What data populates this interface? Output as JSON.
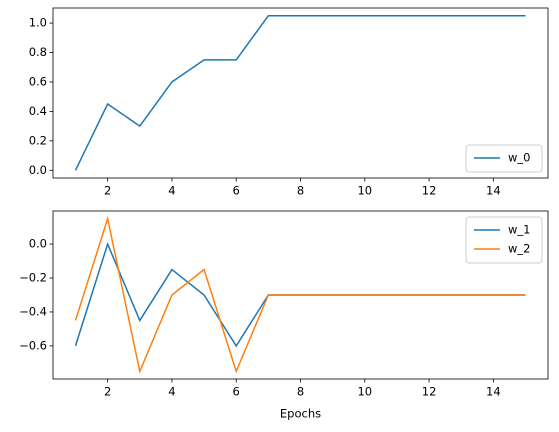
{
  "chart_data": [
    {
      "type": "line",
      "x": [
        1,
        2,
        3,
        4,
        5,
        6,
        7,
        8,
        9,
        10,
        11,
        12,
        13,
        14,
        15
      ],
      "series": [
        {
          "name": "w_0",
          "color": "#1f77b4",
          "values": [
            0,
            0.45,
            0.3,
            0.6,
            0.75,
            0.75,
            1.05,
            1.05,
            1.05,
            1.05,
            1.05,
            1.05,
            1.05,
            1.05,
            1.05
          ]
        }
      ],
      "xlim": [
        0.3,
        15.7
      ],
      "xticks": [
        2,
        4,
        6,
        8,
        10,
        12,
        14
      ],
      "ylim": [
        -0.0525,
        1.1025
      ],
      "yticks": [
        {
          "value": 0,
          "label": "0.0"
        },
        0.2,
        0.4,
        0.6,
        0.8,
        {
          "value": 1,
          "label": "1.0"
        }
      ],
      "legend": "lower right"
    },
    {
      "type": "line",
      "x": [
        1,
        2,
        3,
        4,
        5,
        6,
        7,
        8,
        9,
        10,
        11,
        12,
        13,
        14,
        15
      ],
      "series": [
        {
          "name": "w_1",
          "color": "#1f77b4",
          "values": [
            -0.6,
            0,
            -0.45,
            -0.15,
            -0.3,
            -0.6,
            -0.3,
            -0.3,
            -0.3,
            -0.3,
            -0.3,
            -0.3,
            -0.3,
            -0.3,
            -0.3
          ]
        },
        {
          "name": "w_2",
          "color": "#ff7f0e",
          "values": [
            -0.45,
            0.15,
            -0.75,
            -0.3,
            -0.15,
            -0.75,
            -0.3,
            -0.3,
            -0.3,
            -0.3,
            -0.3,
            -0.3,
            -0.3,
            -0.3,
            -0.3
          ]
        }
      ],
      "xlim": [
        0.3,
        15.7
      ],
      "xticks": [
        2,
        4,
        6,
        8,
        10,
        12,
        14
      ],
      "ylim": [
        -0.795,
        0.195
      ],
      "yticks": [
        {
          "value": -0.6,
          "label": "−0.6"
        },
        {
          "value": -0.4,
          "label": "−0.4"
        },
        {
          "value": -0.2,
          "label": "−0.2"
        },
        {
          "value": 0,
          "label": "0.0"
        }
      ],
      "xlabel": "Epochs",
      "legend": "upper right"
    }
  ]
}
